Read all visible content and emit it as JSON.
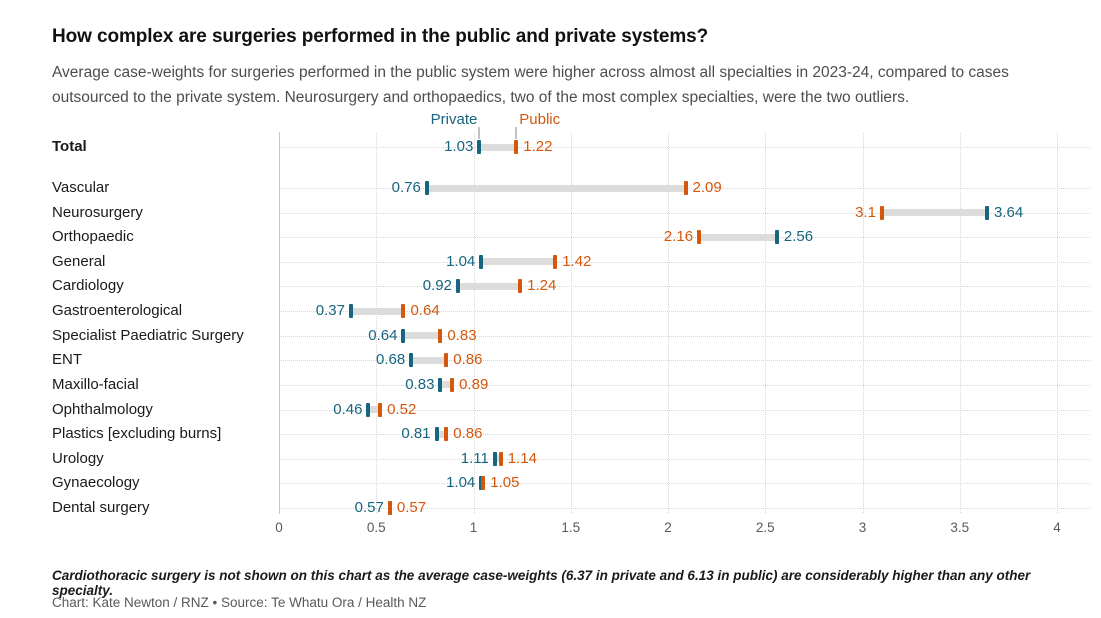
{
  "header": {
    "title": "How complex are surgeries performed in the public and private systems?",
    "subtitle": "Average case-weights for surgeries performed in the public system were higher across almost all specialties in 2023-24, compared to cases outsourced to the private system. Neurosurgery and orthopaedics, two of the most complex specialties, were the two outliers."
  },
  "chart_data": {
    "type": "scatter",
    "variant": "dumbbell",
    "title": "How complex are surgeries performed in the public and private systems?",
    "categories": [
      "Total",
      "Vascular",
      "Neurosurgery",
      "Orthopaedic",
      "General",
      "Cardiology",
      "Gastroenterological",
      "Specialist Paediatric Surgery",
      "ENT",
      "Maxillo-facial",
      "Ophthalmology",
      "Plastics [excluding burns]",
      "Urology",
      "Gynaecology",
      "Dental surgery"
    ],
    "bold_categories": [
      "Total"
    ],
    "series": [
      {
        "name": "Private",
        "color": "#17657e",
        "values": [
          1.03,
          0.76,
          3.64,
          2.56,
          1.04,
          0.92,
          0.37,
          0.64,
          0.68,
          0.83,
          0.46,
          0.81,
          1.11,
          1.04,
          0.57
        ],
        "display": [
          "1.03",
          "0.76",
          "3.64",
          "2.56",
          "1.04",
          "0.92",
          "0.37",
          "0.64",
          "0.68",
          "0.83",
          "0.46",
          "0.81",
          "1.11",
          "1.04",
          "0.57"
        ]
      },
      {
        "name": "Public",
        "color": "#d4570b",
        "values": [
          1.22,
          2.09,
          3.1,
          2.16,
          1.42,
          1.24,
          0.64,
          0.83,
          0.86,
          0.89,
          0.52,
          0.86,
          1.14,
          1.05,
          0.57
        ],
        "display": [
          "1.22",
          "2.09",
          "3.1",
          "2.16",
          "1.42",
          "1.24",
          "0.64",
          "0.83",
          "0.86",
          "0.89",
          "0.52",
          "0.86",
          "1.14",
          "1.05",
          "0.57"
        ]
      }
    ],
    "xlabel": "",
    "ylabel": "",
    "xlim": [
      0,
      4
    ],
    "x_ticks": [
      "0",
      "0.5",
      "1",
      "1.5",
      "2",
      "2.5",
      "3",
      "3.5",
      "4"
    ],
    "grid": "dotted vertical gridlines every 0.5 units; dotted horizontal guide per row; solid axis line at 0",
    "legend_position": "top, above first row, labels pointing at Total markers"
  },
  "colors": {
    "private": "#17657e",
    "public": "#d4570b",
    "connector_bar": "#dcdcdc",
    "gridline": "#d6d6d6",
    "axis_line": "#c8c8c8",
    "axis_text": "#5a5a5a"
  },
  "footer": {
    "note": "Cardiothoracic surgery is not shown on this chart as the average case-weights (6.37 in private and 6.13 in public) are considerably higher than any other specialty.",
    "credit": "Chart: Kate Newton / RNZ • Source: Te Whatu Ora / Health NZ"
  }
}
